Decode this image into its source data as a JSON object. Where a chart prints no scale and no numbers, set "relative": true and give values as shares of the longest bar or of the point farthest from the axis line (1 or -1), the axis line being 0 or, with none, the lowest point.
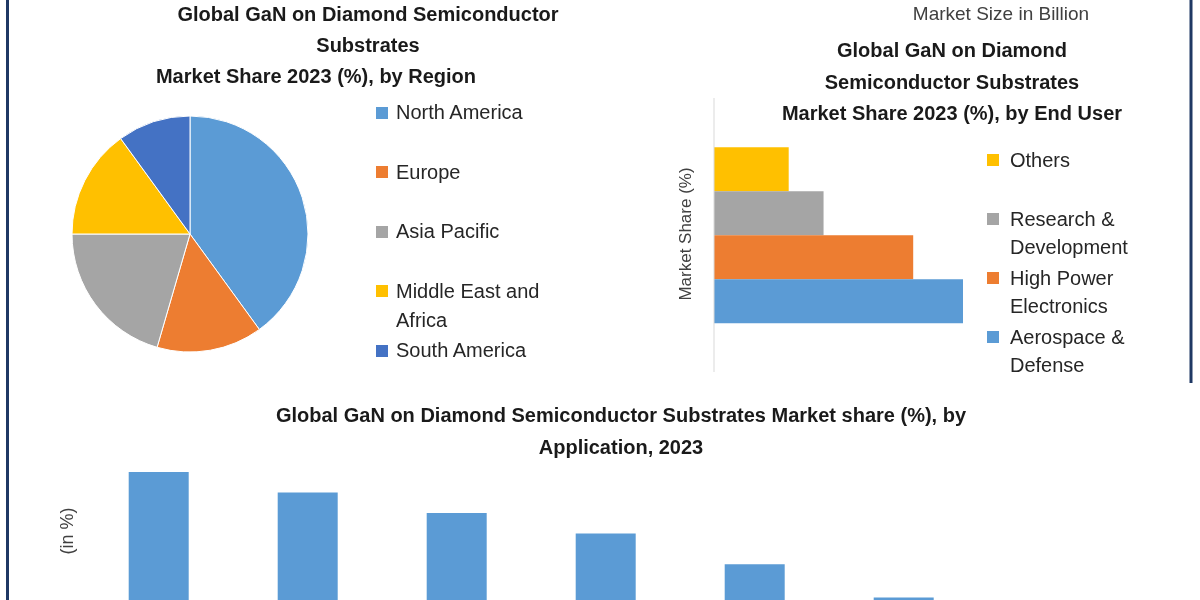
{
  "chart_data": [
    {
      "type": "pie",
      "title": "Global GaN on Diamond Semiconductor Substrates",
      "subtitle": "Market Share 2023 (%), by Region",
      "categories": [
        "North America",
        "Europe",
        "Asia Pacific",
        "Middle East and Africa",
        "South America"
      ],
      "values": [
        40,
        14.5,
        20.5,
        15,
        10
      ],
      "colors": [
        "#5b9bd5",
        "#ed7d31",
        "#a5a5a5",
        "#ffc000",
        "#4472c4"
      ],
      "legend": "right"
    },
    {
      "type": "bar",
      "orientation": "horizontal",
      "relative": true,
      "title": "Global GaN on Diamond Semiconductor Substrates",
      "subtitle": "Market Share 2023 (%), by End User",
      "ylabel": "Market Share (%)",
      "annotations": [
        "Market Size in Billion"
      ],
      "categories": [
        null
      ],
      "series": [
        {
          "name": "Others",
          "color": "#ffc000",
          "values": [
            0.3
          ]
        },
        {
          "name": "Research & Development",
          "color": "#a5a5a5",
          "values": [
            0.44
          ]
        },
        {
          "name": "High Power Electronics",
          "color": "#ed7d31",
          "values": [
            0.8
          ]
        },
        {
          "name": "Aerospace & Defense",
          "color": "#5b9bd5",
          "values": [
            1
          ]
        }
      ],
      "legend": "right"
    },
    {
      "type": "bar",
      "relative": true,
      "title": "Global GaN on Diamond Semiconductor Substrates Market share (%), by Application, 2023",
      "ylabel": "(in %)",
      "categories": [
        null,
        null,
        null,
        null,
        null,
        null
      ],
      "values": [
        1,
        0.84,
        0.68,
        0.52,
        0.28,
        0.02
      ],
      "color": "#5b9bd5"
    }
  ]
}
